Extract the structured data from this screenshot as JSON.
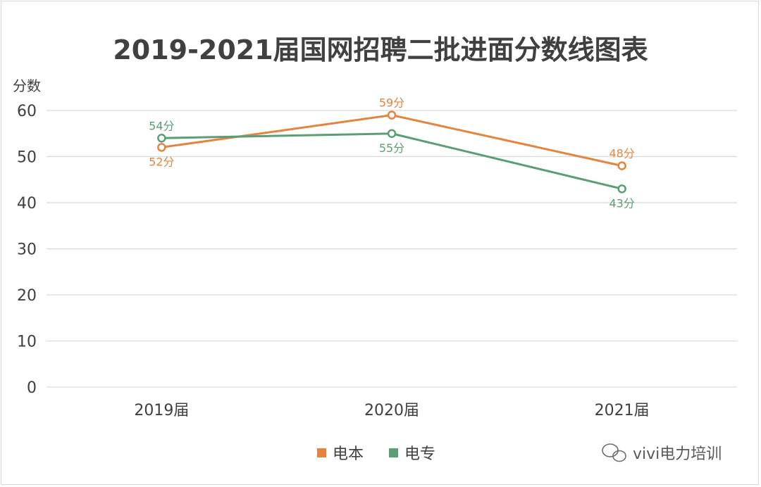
{
  "chart_data": {
    "type": "line",
    "title": "2019-2021届国网招聘二批进面分数线图表",
    "ylabel": "分数",
    "xlabel": "",
    "categories": [
      "2019届",
      "2020届",
      "2021届"
    ],
    "ylim": [
      0,
      60
    ],
    "yticks": [
      "0",
      "10",
      "20",
      "30",
      "40",
      "50",
      "60"
    ],
    "grid": true,
    "legend_position": "bottom",
    "series": [
      {
        "name": "电本",
        "values": [
          52,
          59,
          48
        ],
        "labels": [
          "52分",
          "59分",
          "48分"
        ],
        "color": "#e6843e"
      },
      {
        "name": "电专",
        "values": [
          54,
          55,
          43
        ],
        "labels": [
          "54分",
          "55分",
          "43分"
        ],
        "color": "#5a9e74"
      }
    ]
  },
  "watermark": {
    "text": "vivi电力培训",
    "icon": "wechat-icon"
  }
}
